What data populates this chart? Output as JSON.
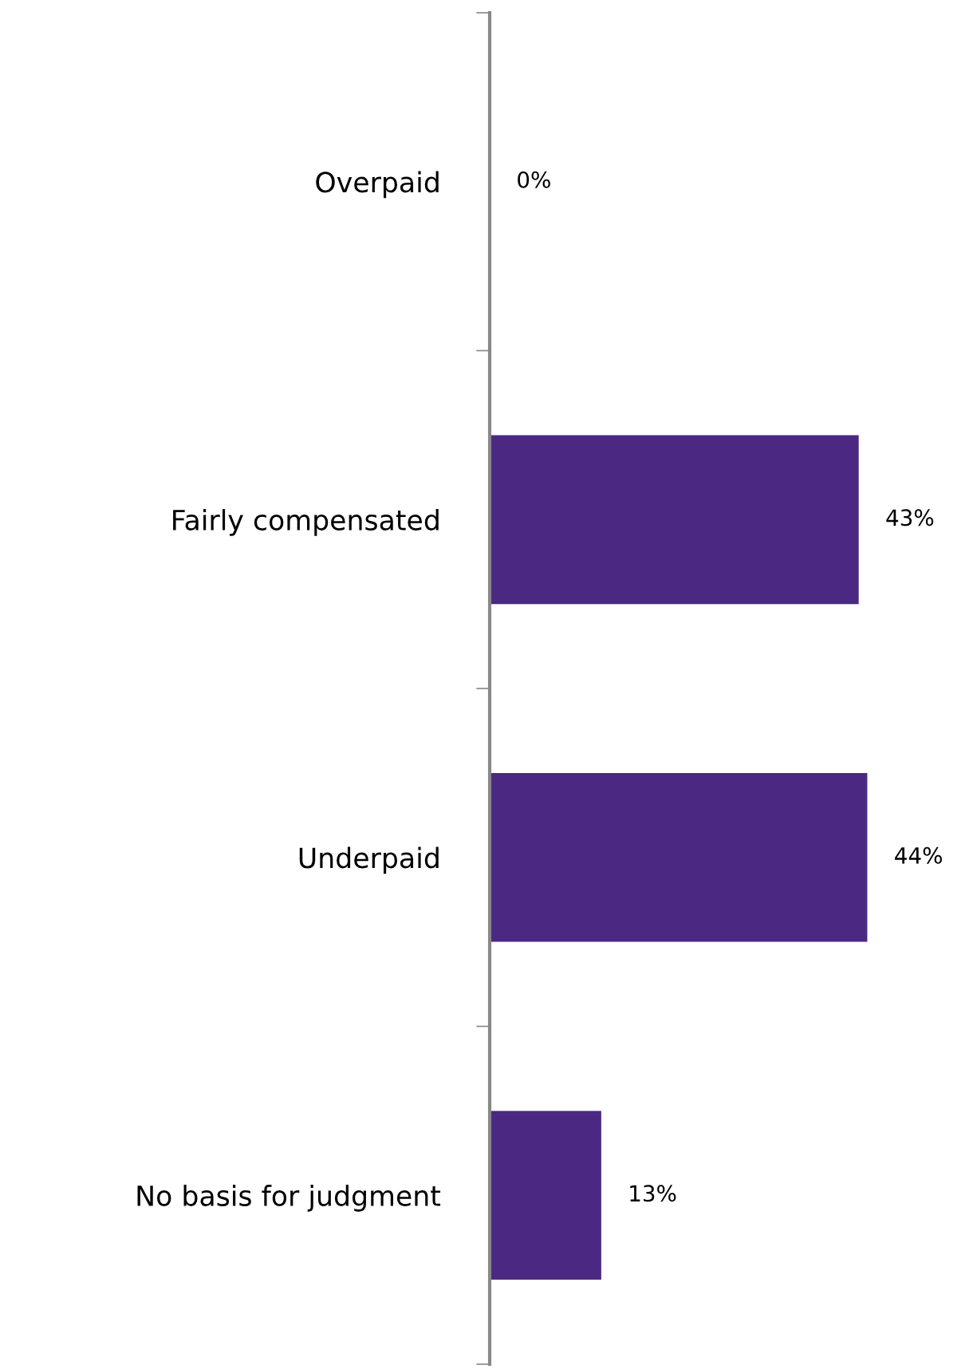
{
  "chart_data": {
    "type": "bar",
    "orientation": "horizontal",
    "categories": [
      "Overpaid",
      "Fairly compensated",
      "Underpaid",
      "No basis for judgment"
    ],
    "values": [
      0,
      43,
      44,
      13
    ],
    "value_labels": [
      "0%",
      "43%",
      "44%",
      "13%"
    ],
    "color": "#4b2882",
    "grid": false,
    "legend": false
  }
}
